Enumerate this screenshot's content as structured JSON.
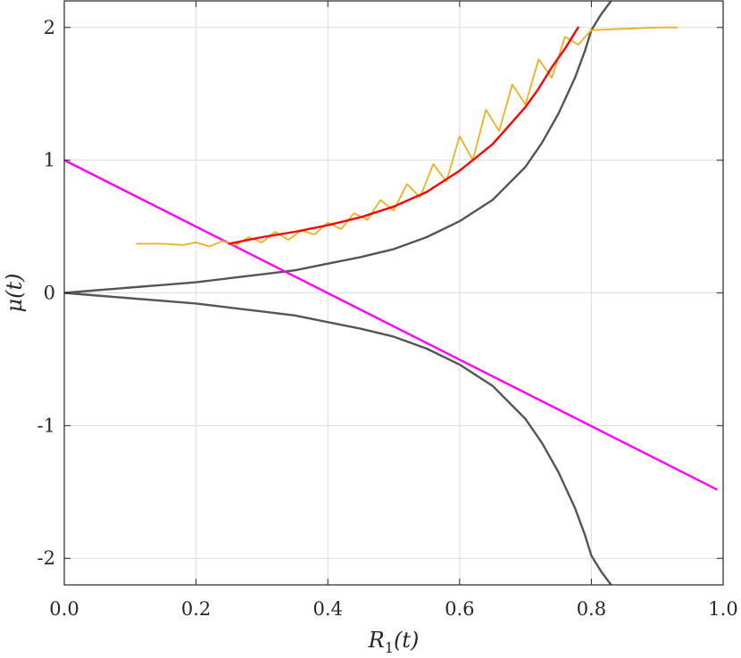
{
  "chart_data": {
    "type": "line",
    "xlabel": {
      "main": "R",
      "sub": "1",
      "tail": "(t)"
    },
    "ylabel": "μ(t)",
    "xlim": [
      0.0,
      1.0
    ],
    "ylim": [
      -2.2,
      2.2
    ],
    "xticks": [
      0.0,
      0.2,
      0.4,
      0.6,
      0.8,
      1.0
    ],
    "xtick_labels": [
      "0.0",
      "0.2",
      "0.4",
      "0.6",
      "0.8",
      "1.0"
    ],
    "yticks": [
      -2,
      -1,
      0,
      1,
      2
    ],
    "ytick_labels": [
      "-2",
      "-1",
      "0",
      "1",
      "2"
    ],
    "grid": true,
    "series": [
      {
        "color": "#555555",
        "x": [
          0.0,
          0.05,
          0.1,
          0.15,
          0.2,
          0.25,
          0.3,
          0.35,
          0.4,
          0.45,
          0.5,
          0.55,
          0.6,
          0.65,
          0.7,
          0.725,
          0.75,
          0.775,
          0.79,
          0.8,
          0.815,
          0.83
        ],
        "y": [
          0.0,
          0.02,
          0.04,
          0.06,
          0.08,
          0.11,
          0.14,
          0.17,
          0.22,
          0.27,
          0.33,
          0.42,
          0.54,
          0.7,
          0.95,
          1.13,
          1.35,
          1.62,
          1.82,
          1.98,
          2.1,
          2.2
        ]
      },
      {
        "color": "#555555",
        "x": [
          0.0,
          0.05,
          0.1,
          0.15,
          0.2,
          0.25,
          0.3,
          0.35,
          0.4,
          0.45,
          0.5,
          0.55,
          0.6,
          0.65,
          0.7,
          0.725,
          0.75,
          0.775,
          0.79,
          0.8,
          0.815,
          0.83
        ],
        "y": [
          0.0,
          -0.02,
          -0.04,
          -0.06,
          -0.08,
          -0.11,
          -0.14,
          -0.17,
          -0.22,
          -0.27,
          -0.33,
          -0.42,
          -0.54,
          -0.7,
          -0.95,
          -1.13,
          -1.35,
          -1.62,
          -1.82,
          -1.98,
          -2.1,
          -2.2
        ]
      },
      {
        "color": "#ff00ff",
        "x": [
          0.0,
          0.99
        ],
        "y": [
          1.0,
          -1.48
        ]
      },
      {
        "color": "#edb120",
        "x": [
          0.11,
          0.15,
          0.18,
          0.2,
          0.22,
          0.24,
          0.26,
          0.28,
          0.3,
          0.32,
          0.34,
          0.36,
          0.38,
          0.4,
          0.42,
          0.44,
          0.46,
          0.48,
          0.5,
          0.52,
          0.54,
          0.56,
          0.58,
          0.6,
          0.62,
          0.64,
          0.66,
          0.68,
          0.7,
          0.72,
          0.74,
          0.76,
          0.78,
          0.8,
          0.85,
          0.9,
          0.93
        ],
        "y": [
          0.37,
          0.37,
          0.36,
          0.38,
          0.35,
          0.39,
          0.36,
          0.42,
          0.38,
          0.46,
          0.4,
          0.47,
          0.44,
          0.53,
          0.48,
          0.6,
          0.55,
          0.7,
          0.62,
          0.82,
          0.72,
          0.97,
          0.84,
          1.18,
          1.0,
          1.38,
          1.22,
          1.57,
          1.42,
          1.76,
          1.62,
          1.93,
          1.87,
          1.98,
          1.99,
          2.0,
          2.0
        ]
      },
      {
        "color": "#ff0000",
        "x": [
          0.25,
          0.3,
          0.35,
          0.4,
          0.45,
          0.5,
          0.55,
          0.6,
          0.65,
          0.7,
          0.72,
          0.74,
          0.76,
          0.78
        ],
        "y": [
          0.37,
          0.42,
          0.46,
          0.51,
          0.57,
          0.65,
          0.76,
          0.92,
          1.12,
          1.4,
          1.54,
          1.7,
          1.84,
          2.0
        ]
      }
    ]
  }
}
